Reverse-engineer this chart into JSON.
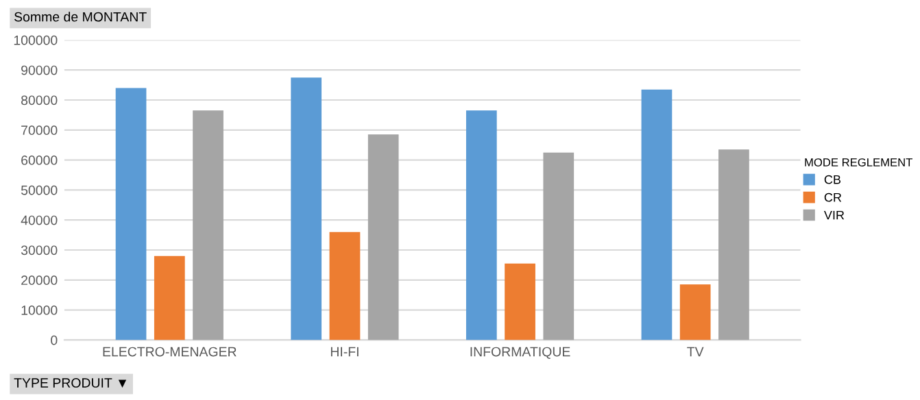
{
  "chart_data": {
    "type": "bar",
    "title": "Somme de MONTANT",
    "xlabel": "TYPE PRODUIT ▼",
    "legend_title": "MODE REGLEMENT",
    "categories": [
      "ELECTRO-MENAGER",
      "HI-FI",
      "INFORMATIQUE",
      "TV"
    ],
    "series": [
      {
        "name": "CB",
        "color": "#5b9bd5",
        "values": [
          84000,
          87500,
          76500,
          83500
        ]
      },
      {
        "name": "CR",
        "color": "#ed7d31",
        "values": [
          28000,
          36000,
          25500,
          18500
        ]
      },
      {
        "name": "VIR",
        "color": "#a5a5a5",
        "values": [
          76500,
          68500,
          62500,
          63500
        ]
      }
    ],
    "ylim": [
      0,
      100000
    ],
    "yticks": [
      0,
      10000,
      20000,
      30000,
      40000,
      50000,
      60000,
      70000,
      80000,
      90000,
      100000
    ],
    "grid": "y",
    "legend": "right"
  }
}
